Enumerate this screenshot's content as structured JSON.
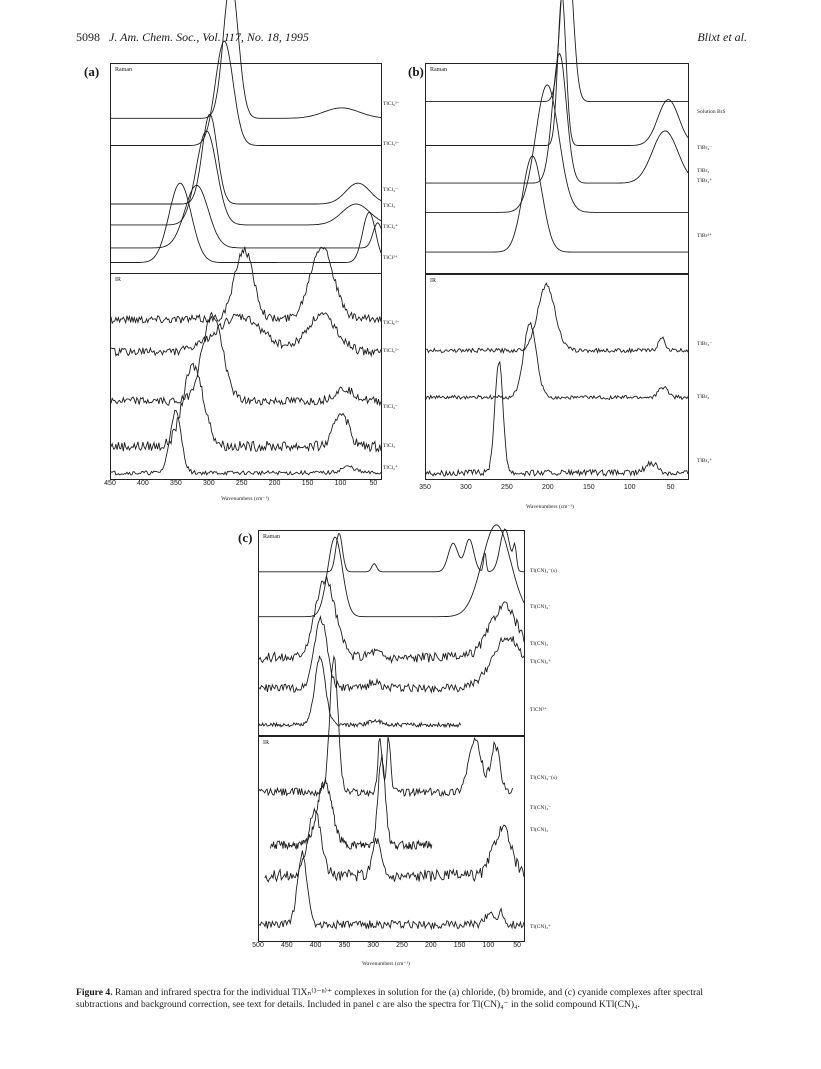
{
  "header": {
    "page_number": "5098",
    "journal": "J. Am. Chem. Soc., Vol. 117, No. 18, 1995",
    "authors": "Blixt et al."
  },
  "panels": {
    "a": {
      "letter": "(a)",
      "raman_tag": "Raman",
      "ir_tag": "IR",
      "raman_labels": [
        "TlCl₆³⁻",
        "TlCl₅²⁻",
        "TlCl₄⁻",
        "TlCl₃",
        "TlCl₂⁺",
        "TlCl²⁺"
      ],
      "ir_labels": [
        "TlCl₆³⁻",
        "TlCl₅²⁻",
        "TlCl₄⁻",
        "TlCl₃",
        "TlCl₂⁺"
      ],
      "ticks": [
        "450",
        "400",
        "350",
        "300",
        "250",
        "200",
        "150",
        "100",
        "50"
      ],
      "xlabel": "Wavenumbers (cm⁻¹)"
    },
    "b": {
      "letter": "(b)",
      "raman_tag": "Raman",
      "ir_tag": "IR",
      "raman_labels": [
        "Solution BrS",
        "TlBr₄⁻",
        "TlBr₃",
        "TlBr₂⁺",
        "TlBr²⁺"
      ],
      "ir_labels": [
        "TlBr₄⁻",
        "TlBr₃",
        "TlBr₂⁺"
      ],
      "ticks": [
        "350",
        "300",
        "250",
        "200",
        "150",
        "100",
        "50"
      ],
      "xlabel": "Wavenumbers (cm⁻¹)"
    },
    "c": {
      "letter": "(c)",
      "raman_tag": "Raman",
      "ir_tag": "IR",
      "raman_labels": [
        "Tl(CN)₄⁻(s)",
        "Tl(CN)₄⁻",
        "Tl(CN)₃",
        "Tl(CN)₂⁺",
        "TlCN²⁺"
      ],
      "ir_labels": [
        "Tl(CN)₄⁻(s)",
        "Tl(CN)₄⁻",
        "Tl(CN)₃",
        "Tl(CN)₂⁺"
      ],
      "ticks": [
        "500",
        "450",
        "400",
        "350",
        "300",
        "250",
        "200",
        "150",
        "100",
        "50"
      ],
      "xlabel": "Wavenumbers (cm⁻¹)"
    }
  },
  "caption": {
    "label": "Figure 4.",
    "text": "Raman and infrared spectra for the individual TlXₙ⁽³⁻ⁿ⁾⁺ complexes in solution for the (a) chloride, (b) bromide, and (c) cyanide complexes after spectral subtractions and background correction, see text for details. Included in panel c are also the spectra for Tl(CN)₄⁻ in the solid compound KTl(CN)₄."
  },
  "spectra": {
    "a_raman": [
      {
        "base": 0.74,
        "peaks": [
          [
            268,
            16,
            0.66
          ],
          [
            100,
            38,
            0.05
          ]
        ]
      },
      {
        "base": 0.61,
        "peaks": [
          [
            278,
            19,
            0.5
          ]
        ]
      },
      {
        "base": 0.33,
        "peaks": [
          [
            300,
            16,
            0.43
          ],
          [
            75,
            26,
            0.1
          ]
        ]
      },
      {
        "base": 0.23,
        "peaks": [
          [
            305,
            22,
            0.45
          ],
          [
            78,
            30,
            0.1
          ]
        ]
      },
      {
        "base": 0.12,
        "peaks": [
          [
            320,
            25,
            0.3
          ],
          [
            45,
            10,
            0.12
          ]
        ]
      },
      {
        "base": 0.05,
        "peaks": [
          [
            345,
            24,
            0.38
          ],
          [
            58,
            14,
            0.24
          ]
        ]
      }
    ],
    "a_ir": [
      {
        "base": 0.78,
        "peaks": [
          [
            248,
            20,
            0.34
          ],
          [
            130,
            25,
            0.36
          ]
        ],
        "noise": 0.02
      },
      {
        "base": 0.62,
        "peaks": [
          [
            255,
            50,
            0.17
          ],
          [
            130,
            32,
            0.18
          ]
        ],
        "noise": 0.02
      },
      {
        "base": 0.38,
        "peaks": [
          [
            296,
            22,
            0.42
          ],
          [
            95,
            22,
            0.06
          ]
        ],
        "noise": 0.02
      },
      {
        "base": 0.16,
        "peaks": [
          [
            325,
            22,
            0.39
          ],
          [
            100,
            15,
            0.17
          ]
        ],
        "noise": 0.025
      },
      {
        "base": 0.03,
        "peaks": [
          [
            352,
            12,
            0.3
          ],
          [
            90,
            15,
            0.03
          ]
        ],
        "noise": 0.01
      }
    ],
    "b_raman": [
      {
        "base": 0.82,
        "peaks": [
          [
            178,
            10,
            0.8
          ]
        ]
      },
      {
        "base": 0.61,
        "peaks": [
          [
            184,
            7,
            0.72
          ],
          [
            54,
            18,
            0.22
          ]
        ]
      },
      {
        "base": 0.43,
        "peaks": [
          [
            187,
            12,
            0.62
          ],
          [
            58,
            22,
            0.25
          ]
        ]
      },
      {
        "base": 0.29,
        "peaks": [
          [
            202,
            20,
            0.61
          ]
        ]
      },
      {
        "base": 0.1,
        "peaks": [
          [
            220,
            17,
            0.46
          ]
        ]
      }
    ],
    "b_ir": [
      {
        "base": 0.63,
        "peaks": [
          [
            203,
            15,
            0.32
          ],
          [
            62,
            6,
            0.06
          ]
        ],
        "noise": 0.01
      },
      {
        "base": 0.4,
        "peaks": [
          [
            223,
            11,
            0.36
          ],
          [
            60,
            8,
            0.05
          ]
        ],
        "noise": 0.01
      },
      {
        "base": 0.03,
        "peaks": [
          [
            261,
            7,
            0.55
          ],
          [
            75,
            10,
            0.05
          ]
        ],
        "noise": 0.015
      }
    ],
    "c_raman": [
      {
        "base": 0.8,
        "peaks": [
          [
            361,
            8,
            0.19
          ],
          [
            300,
            6,
            0.04
          ],
          [
            163,
            12,
            0.14
          ],
          [
            135,
            11,
            0.16
          ],
          [
            73,
            12,
            0.21
          ],
          [
            56,
            4,
            0.11
          ],
          [
            108,
            3,
            0.1
          ]
        ]
      },
      {
        "base": 0.58,
        "peaks": [
          [
            368,
            18,
            0.39
          ],
          [
            88,
            35,
            0.45
          ]
        ]
      },
      {
        "base": 0.38,
        "peaks": [
          [
            385,
            25,
            0.38
          ],
          [
            300,
            15,
            0.03
          ],
          [
            75,
            35,
            0.25
          ]
        ],
        "noise": 0.025
      },
      {
        "base": 0.23,
        "peaks": [
          [
            393,
            16,
            0.34
          ],
          [
            300,
            14,
            0.03
          ],
          [
            68,
            38,
            0.25
          ]
        ],
        "noise": 0.02
      },
      {
        "base": 0.05,
        "peaks": [
          [
            394,
            13,
            0.33
          ],
          [
            300,
            14,
            0.02
          ]
        ],
        "noise": 0.01,
        "end": 150
      }
    ],
    "c_ir": [
      {
        "base": 0.73,
        "peaks": [
          [
            370,
            10,
            0.66
          ],
          [
            290,
            5,
            0.27
          ],
          [
            275,
            5,
            0.27
          ],
          [
            125,
            16,
            0.25
          ],
          [
            90,
            11,
            0.23
          ]
        ],
        "noise": 0.02,
        "end": 60
      },
      {
        "base": 0.47,
        "peaks": [
          [
            386,
            18,
            0.31
          ],
          [
            287,
            9,
            0.43
          ],
          [
            115,
            22,
            0.1
          ],
          [
            80,
            10,
            0.12
          ]
        ],
        "noise": 0.02,
        "start": 480,
        "end": 200
      },
      {
        "base": 0.32,
        "peaks": [
          [
            404,
            16,
            0.33
          ],
          [
            296,
            10,
            0.18
          ],
          [
            78,
            22,
            0.23
          ]
        ],
        "noise": 0.03,
        "start": 490
      },
      {
        "base": 0.08,
        "peaks": [
          [
            425,
            12,
            0.35
          ],
          [
            100,
            10,
            0.06
          ],
          [
            80,
            8,
            0.06
          ]
        ],
        "noise": 0.02
      }
    ]
  }
}
